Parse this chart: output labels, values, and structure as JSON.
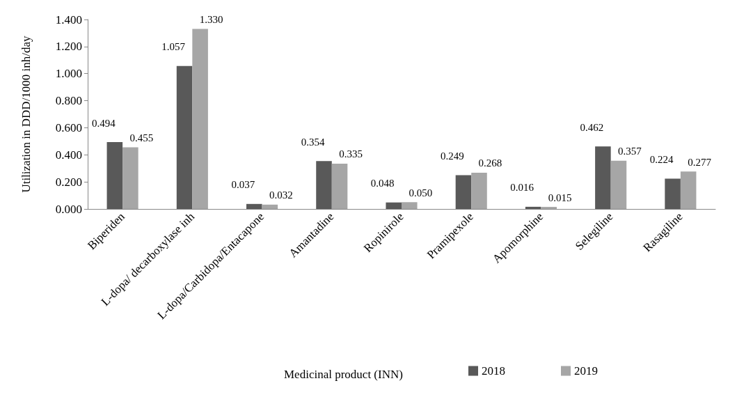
{
  "chart_data": {
    "type": "bar",
    "xlabel": "Medicinal product (INN)",
    "ylabel": "Utilization in DDD/1000 inh/day",
    "categories": [
      "Biperiden",
      "L-dopa/ decarboxylase inh",
      "L-dopa/Carbidopa/Entacapone",
      "Amantadine",
      "Ropinirole",
      "Pramipexole",
      "Apomorphine",
      "Selegiline",
      "Rasagiline"
    ],
    "series": [
      {
        "name": "2018",
        "color": "#595959",
        "values": [
          0.494,
          1.057,
          0.037,
          0.354,
          0.048,
          0.249,
          0.016,
          0.462,
          0.224
        ],
        "value_labels": [
          "0.494",
          "1.057",
          "0.037",
          "0.354",
          "0.048",
          "0.249",
          "0.016",
          "0.462",
          "0.224"
        ]
      },
      {
        "name": "2019",
        "color": "#a6a6a6",
        "values": [
          0.455,
          1.33,
          0.032,
          0.335,
          0.05,
          0.268,
          0.015,
          0.357,
          0.277
        ],
        "value_labels": [
          "0.455",
          "1.330",
          "0.032",
          "0.335",
          "0.050",
          "0.268",
          "0.015",
          "0.357",
          "0.277"
        ]
      }
    ],
    "ylim": [
      0,
      1.4
    ],
    "yticks": [
      {
        "value": 0,
        "label": "0.000"
      },
      {
        "value": 0.2,
        "label": "0.200"
      },
      {
        "value": 0.4,
        "label": "0.400"
      },
      {
        "value": 0.6,
        "label": "0.600"
      },
      {
        "value": 0.8,
        "label": "0.800"
      },
      {
        "value": 1,
        "label": "1.000"
      },
      {
        "value": 1.2,
        "label": "1.200"
      },
      {
        "value": 1.4,
        "label": "1.400"
      }
    ],
    "grid": false,
    "legend": "bottom"
  }
}
